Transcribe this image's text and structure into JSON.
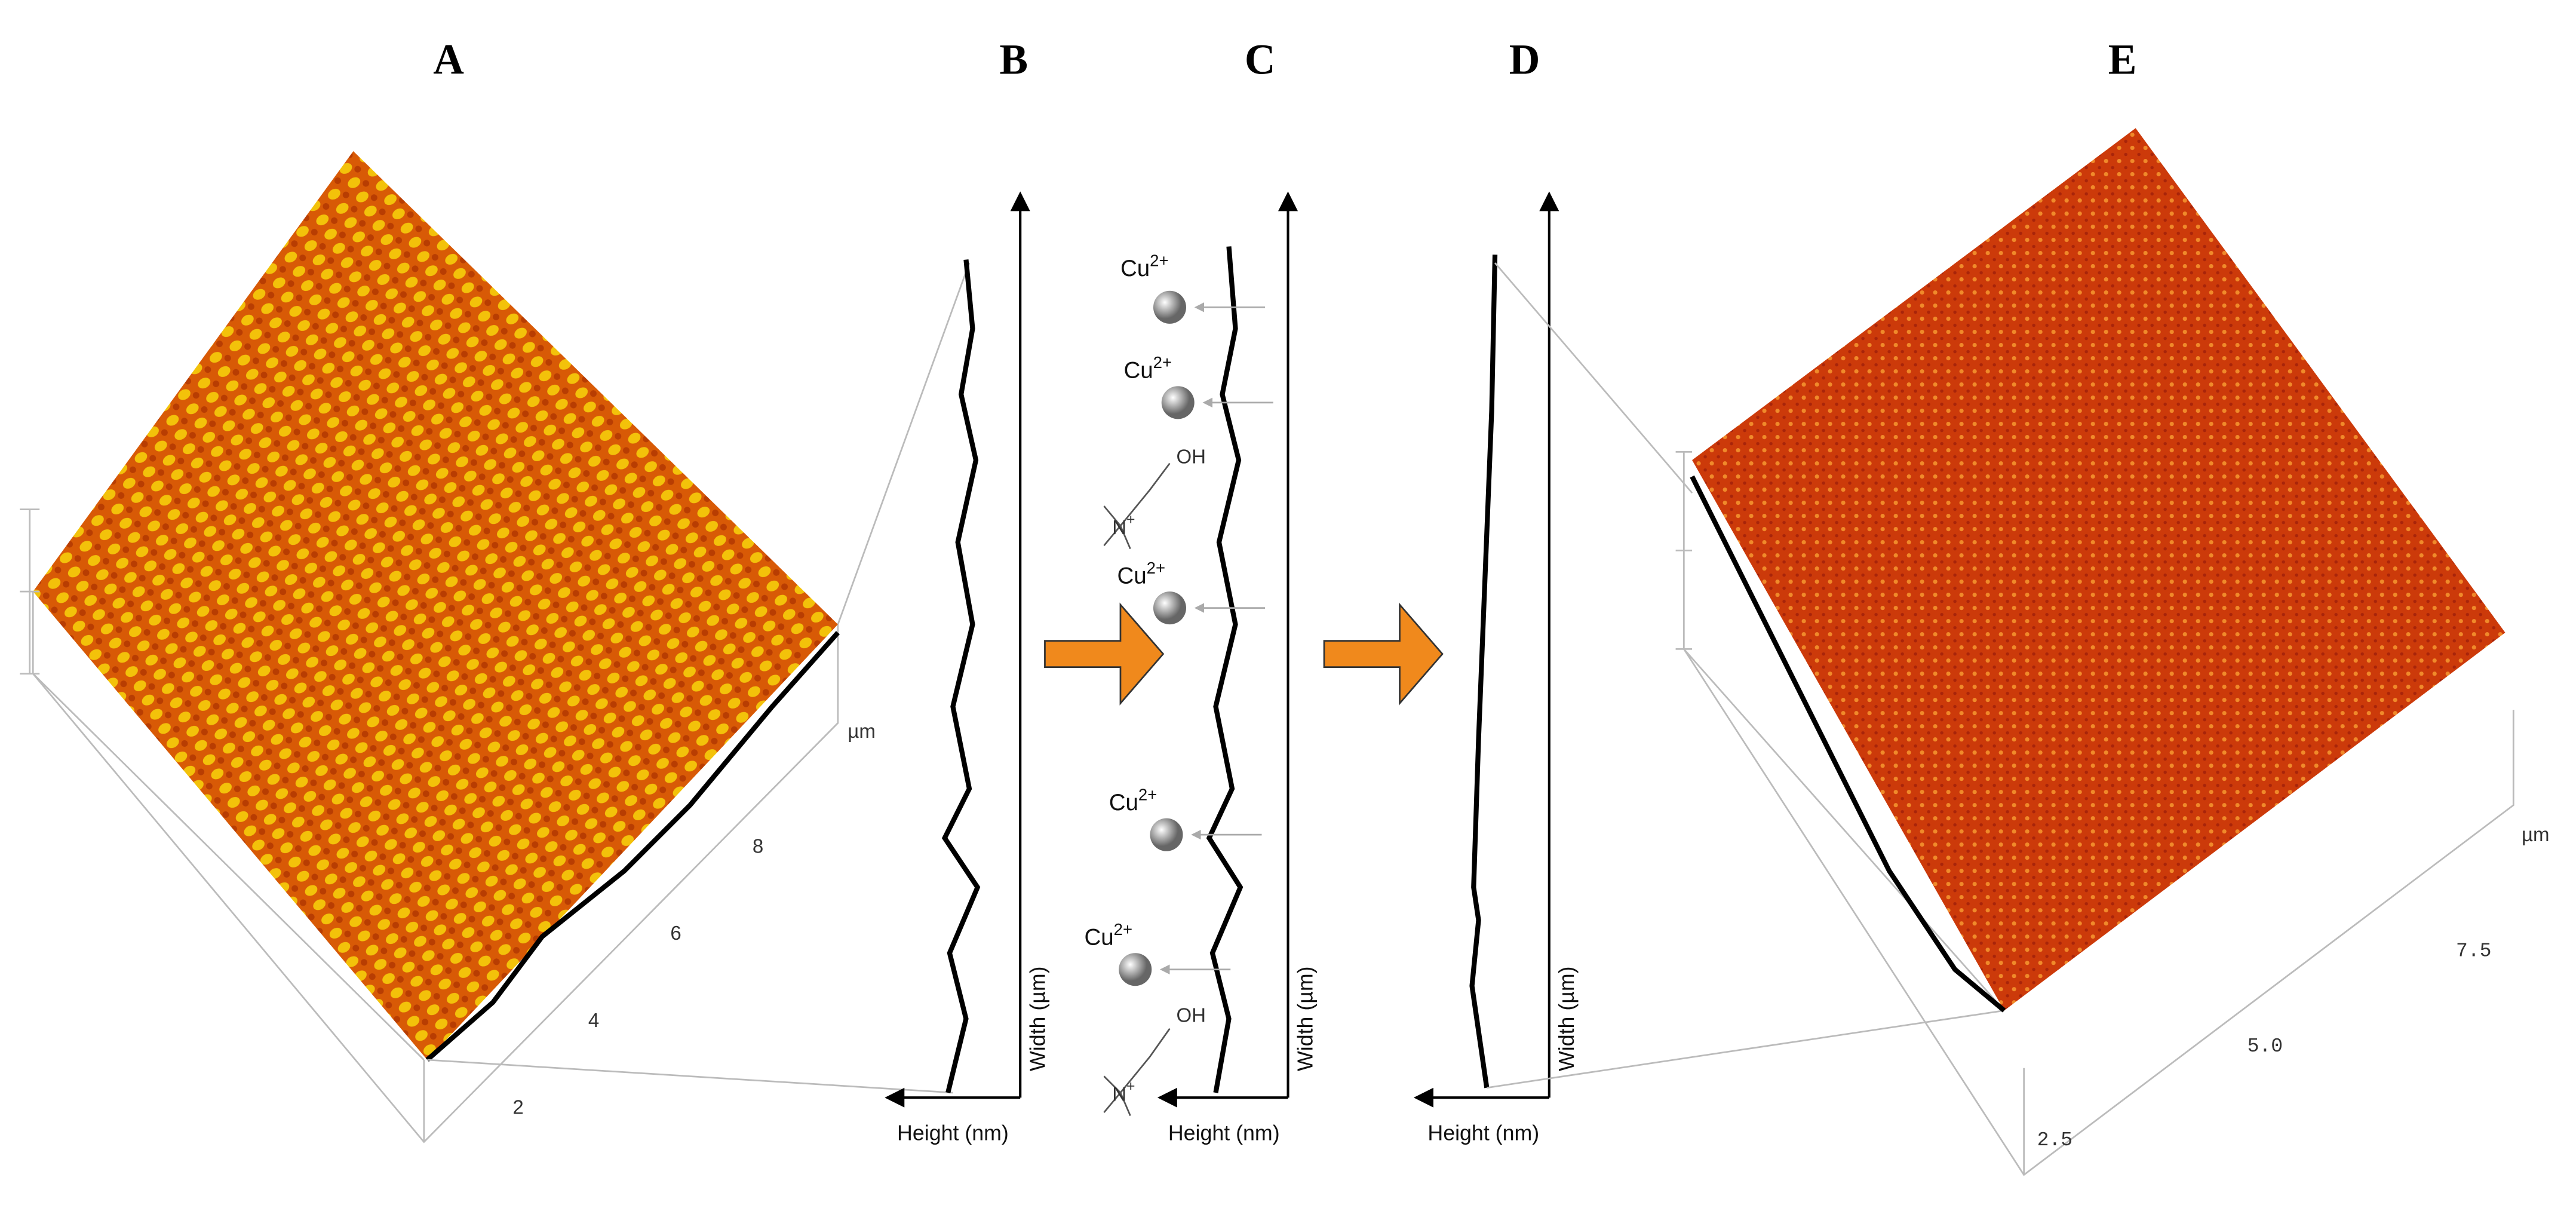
{
  "panels": [
    {
      "label": "A",
      "ticks": [
        "2",
        "4",
        "6",
        "8"
      ],
      "unit": "µm"
    },
    {
      "label": "B",
      "y_axis": "Width (µm)",
      "x_axis": "Height (nm)"
    },
    {
      "label": "C",
      "y_axis": "Width (µm)",
      "x_axis": "Height (nm)",
      "ions": [
        {
          "symbol": "Cu",
          "charge": "2+"
        },
        {
          "symbol": "Cu",
          "charge": "2+"
        },
        {
          "symbol": "Cu",
          "charge": "2+"
        },
        {
          "symbol": "Cu",
          "charge": "2+"
        },
        {
          "symbol": "Cu",
          "charge": "2+"
        }
      ],
      "molecules": [
        {
          "group": "OH",
          "atom": "N",
          "charge": "+"
        },
        {
          "group": "OH",
          "atom": "N",
          "charge": "+"
        }
      ]
    },
    {
      "label": "D",
      "y_axis": "Width (µm)",
      "x_axis": "Height (nm)"
    },
    {
      "label": "E",
      "ticks": [
        "2.5",
        "5.0",
        "7.5"
      ],
      "unit": "µm"
    }
  ]
}
